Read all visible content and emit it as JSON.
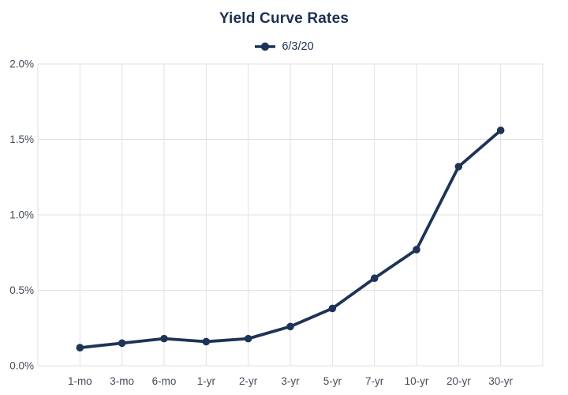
{
  "title": "Yield Curve Rates",
  "legend": {
    "label": "6/3/20"
  },
  "colors": {
    "line": "#1d3456",
    "title_text": "#1d3050",
    "grid": "#e2e2e2",
    "tick_text": "#454d57",
    "background": "#ffffff"
  },
  "chart_data": {
    "type": "line",
    "title": "Yield Curve Rates",
    "xlabel": "",
    "ylabel": "",
    "categories": [
      "1-mo",
      "3-mo",
      "6-mo",
      "1-yr",
      "2-yr",
      "3-yr",
      "5-yr",
      "7-yr",
      "10-yr",
      "20-yr",
      "30-yr"
    ],
    "series": [
      {
        "name": "6/3/20",
        "values": [
          0.12,
          0.15,
          0.18,
          0.16,
          0.18,
          0.26,
          0.38,
          0.58,
          0.77,
          1.32,
          1.56
        ]
      }
    ],
    "ylim": [
      0.0,
      2.0
    ],
    "yticks": {
      "values": [
        0.0,
        0.5,
        1.0,
        1.5,
        2.0
      ],
      "labels": [
        "0.0%",
        "0.5%",
        "1.0%",
        "1.5%",
        "2.0%"
      ]
    },
    "grid": true,
    "legend_position": "top-center",
    "marker": "circle"
  }
}
